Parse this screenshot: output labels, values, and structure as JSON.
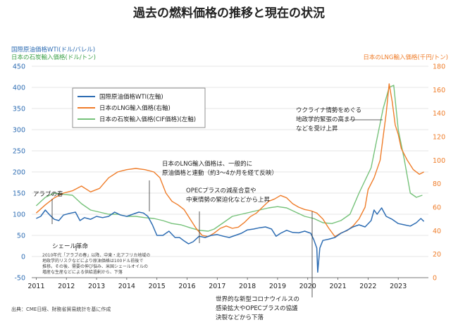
{
  "title": "過去の燃料価格の推移と現在の状況",
  "left_axis_title_1": "国際原油価格WTI(ドル/バレル)",
  "left_axis_title_2": "日本の石炭輸入価格(ドル/トン)",
  "right_axis_title": "日本のLNG輸入価格(千円/トン)",
  "source": "出典：CME日経、財務省貿易統計を基に作成",
  "colors": {
    "wti": "#2e6db3",
    "lng": "#ef7d2a",
    "coal": "#76c27a",
    "left_axis": "#2e6db3",
    "right_axis": "#ef7d2a",
    "grid": "#dddddd"
  },
  "legend": [
    {
      "key": "wti",
      "label": "国際原油価格WTI(左軸)"
    },
    {
      "key": "lng",
      "label": "日本のLNG輸入価格(右軸)"
    },
    {
      "key": "coal",
      "label": "日本の石炭輸入価格(CIF価格)(左軸)"
    }
  ],
  "annotations": {
    "arab_spring": "アラブの春",
    "shale": "シェール革命",
    "shale_note_1": "2010年代「アラブの春」以降、中東・北アフリカ地域の",
    "shale_note_2": "地政学的リスクなどにより原油価格は100ドル前後で",
    "shale_note_3": "推移。その後、需要の伸び悩み、米国シェールオイルの",
    "shale_note_4": "増産な生産などによる供給過剰から、下落",
    "lng_link_1": "日本のLNG輸入価格は、一般的に",
    "lng_link_2": "原油価格と連動（約3〜4か月を経て反映）",
    "opec_1": "OPECプラスの減産合意や",
    "opec_2": "中東情勢の緊迫化などから上昇",
    "covid_1": "世界的な新型コロナウイルスの",
    "covid_2": "感染拡大やOPECプラスの協議",
    "covid_3": "決裂などから下落",
    "ukraine_1": "ウクライナ情勢をめぐる",
    "ukraine_2": "地政学的緊張の高まり",
    "ukraine_3": "などを受け上昇"
  },
  "chart_data": {
    "type": "line",
    "x_ticks": [
      "2011",
      "2012",
      "2013",
      "2014",
      "2015",
      "2016",
      "2017",
      "2018",
      "2019",
      "2020",
      "2021",
      "2022",
      "2023"
    ],
    "x_range": [
      2010.85,
      2024.0
    ],
    "left_axis": {
      "range": [
        -50,
        450
      ],
      "ticks": [
        -50,
        0,
        50,
        100,
        150,
        200,
        250,
        300,
        350,
        400,
        450
      ]
    },
    "right_axis": {
      "range": [
        0,
        180
      ],
      "ticks": [
        0,
        20,
        40,
        60,
        80,
        100,
        120,
        140,
        160,
        180
      ]
    },
    "grid": "horizontal",
    "legend_position": "upper-left",
    "series": [
      {
        "name": "国際原油価格WTI(左軸)",
        "axis": "left",
        "key": "wti",
        "x": [
          2011.0,
          2011.15,
          2011.3,
          2011.45,
          2011.6,
          2011.75,
          2011.9,
          2012.1,
          2012.3,
          2012.45,
          2012.6,
          2012.8,
          2013.0,
          2013.2,
          2013.4,
          2013.6,
          2013.8,
          2014.0,
          2014.2,
          2014.4,
          2014.55,
          2014.7,
          2014.85,
          2015.0,
          2015.2,
          2015.4,
          2015.6,
          2015.75,
          2015.9,
          2016.05,
          2016.2,
          2016.4,
          2016.6,
          2016.8,
          2017.0,
          2017.2,
          2017.4,
          2017.6,
          2017.8,
          2018.0,
          2018.2,
          2018.4,
          2018.6,
          2018.8,
          2018.95,
          2019.1,
          2019.3,
          2019.5,
          2019.7,
          2019.9,
          2020.1,
          2020.2,
          2020.3,
          2020.33,
          2020.4,
          2020.5,
          2020.7,
          2020.9,
          2021.1,
          2021.3,
          2021.5,
          2021.7,
          2021.9,
          2022.1,
          2022.2,
          2022.3,
          2022.45,
          2022.6,
          2022.8,
          2023.0,
          2023.2,
          2023.4,
          2023.6,
          2023.75,
          2023.85
        ],
        "y": [
          90,
          95,
          110,
          98,
          88,
          85,
          98,
          102,
          105,
          85,
          92,
          88,
          95,
          92,
          95,
          105,
          98,
          95,
          100,
          105,
          103,
          95,
          75,
          50,
          50,
          60,
          45,
          45,
          37,
          30,
          35,
          48,
          45,
          50,
          52,
          48,
          45,
          50,
          55,
          63,
          65,
          68,
          70,
          65,
          48,
          55,
          62,
          57,
          56,
          60,
          55,
          40,
          20,
          -37,
          20,
          38,
          41,
          45,
          55,
          62,
          70,
          75,
          70,
          85,
          110,
          100,
          115,
          95,
          88,
          78,
          75,
          72,
          80,
          90,
          83
        ]
      },
      {
        "name": "日本のLNG輸入価格(右軸)",
        "axis": "right",
        "key": "lng",
        "x": [
          2011.0,
          2011.3,
          2011.6,
          2011.9,
          2012.2,
          2012.5,
          2012.8,
          2013.1,
          2013.4,
          2013.7,
          2014.0,
          2014.3,
          2014.6,
          2014.9,
          2015.1,
          2015.3,
          2015.5,
          2015.7,
          2015.9,
          2016.1,
          2016.3,
          2016.5,
          2016.7,
          2016.9,
          2017.1,
          2017.3,
          2017.5,
          2017.7,
          2017.9,
          2018.1,
          2018.3,
          2018.5,
          2018.7,
          2018.9,
          2019.1,
          2019.3,
          2019.5,
          2019.7,
          2019.9,
          2020.1,
          2020.3,
          2020.5,
          2020.7,
          2020.9,
          2021.1,
          2021.3,
          2021.5,
          2021.7,
          2021.9,
          2022.0,
          2022.2,
          2022.4,
          2022.5,
          2022.6,
          2022.7,
          2022.8,
          2022.9,
          2023.0,
          2023.1,
          2023.3,
          2023.5,
          2023.7,
          2023.85
        ],
        "y": [
          55,
          62,
          68,
          72,
          74,
          78,
          73,
          76,
          85,
          90,
          92,
          93,
          92,
          90,
          85,
          72,
          65,
          62,
          58,
          50,
          42,
          36,
          35,
          38,
          42,
          44,
          42,
          43,
          47,
          52,
          55,
          60,
          65,
          67,
          70,
          68,
          63,
          60,
          58,
          57,
          55,
          50,
          42,
          35,
          38,
          40,
          44,
          50,
          60,
          75,
          85,
          100,
          120,
          140,
          165,
          150,
          130,
          122,
          110,
          100,
          92,
          88,
          90
        ]
      },
      {
        "name": "日本の石炭輸入価格(CIF価格)(左軸)",
        "axis": "left",
        "key": "coal",
        "x": [
          2011.0,
          2011.3,
          2011.6,
          2011.9,
          2012.2,
          2012.5,
          2012.8,
          2013.1,
          2013.4,
          2013.7,
          2014.0,
          2014.3,
          2014.6,
          2014.9,
          2015.2,
          2015.5,
          2015.8,
          2016.1,
          2016.4,
          2016.7,
          2016.9,
          2017.2,
          2017.5,
          2017.8,
          2018.1,
          2018.4,
          2018.7,
          2019.0,
          2019.3,
          2019.6,
          2019.9,
          2020.2,
          2020.5,
          2020.8,
          2021.1,
          2021.4,
          2021.7,
          2021.9,
          2022.1,
          2022.3,
          2022.5,
          2022.7,
          2022.85,
          2023.0,
          2023.2,
          2023.4,
          2023.6,
          2023.8
        ],
        "y": [
          120,
          140,
          150,
          147,
          145,
          125,
          110,
          105,
          100,
          100,
          95,
          95,
          92,
          90,
          85,
          78,
          75,
          68,
          62,
          60,
          65,
          80,
          95,
          100,
          105,
          110,
          115,
          118,
          115,
          105,
          95,
          90,
          80,
          78,
          85,
          100,
          150,
          180,
          210,
          280,
          350,
          400,
          405,
          300,
          230,
          150,
          140,
          145
        ]
      }
    ]
  }
}
